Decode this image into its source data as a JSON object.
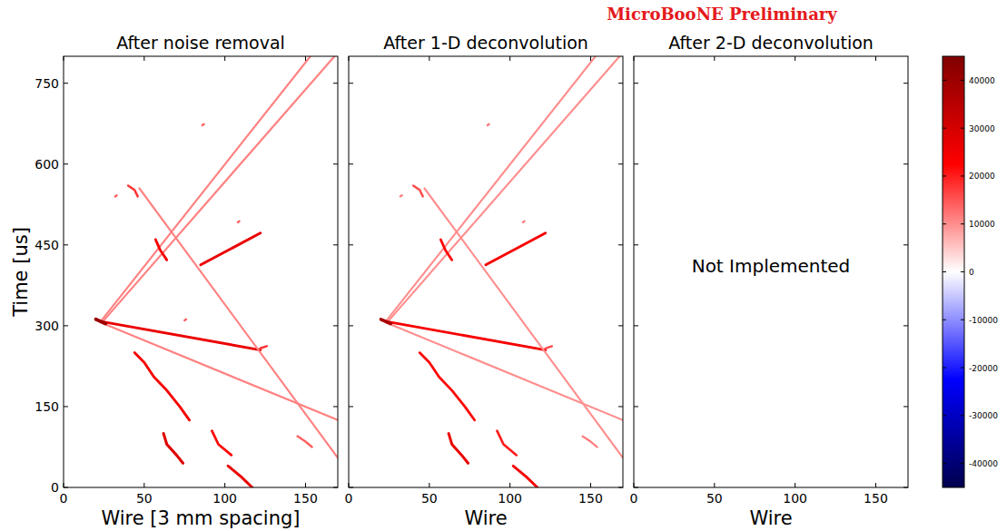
{
  "suptitle": "MicroBooNE Preliminary",
  "colorbar": {
    "range": [
      -45000,
      45000
    ],
    "ticks": [
      -40000,
      -30000,
      -20000,
      -10000,
      0,
      10000,
      20000,
      30000,
      40000
    ]
  },
  "chart_data": [
    {
      "type": "heatmap",
      "title": "After noise removal",
      "x_label": "Wire [3 mm spacing]",
      "y_label": "Time [us]",
      "xlim": [
        0,
        170
      ],
      "xticks": [
        0,
        50,
        100,
        150
      ],
      "ylim": [
        0,
        800
      ],
      "yticks": [
        0,
        150,
        300,
        450,
        600,
        750
      ],
      "tracks": [
        {
          "x": [
            23,
            153
          ],
          "values": [
            308,
            800
          ],
          "charge": 11000
        },
        {
          "x": [
            25,
            168
          ],
          "values": [
            310,
            800
          ],
          "charge": 11000
        },
        {
          "x": [
            23,
            122
          ],
          "values": [
            308,
            255
          ],
          "charge": 26000
        },
        {
          "x": [
            23,
            170
          ],
          "values": [
            306,
            125
          ],
          "charge": 11000
        },
        {
          "x": [
            47,
            170
          ],
          "values": [
            555,
            55
          ],
          "charge": 11000
        },
        {
          "x": [
            85,
            122
          ],
          "values": [
            413,
            472
          ],
          "charge": 26000
        },
        {
          "x": [
            44,
            50,
            56,
            64,
            72,
            78
          ],
          "values": [
            250,
            232,
            205,
            180,
            150,
            125
          ],
          "charge": 24000
        },
        {
          "x": [
            62,
            64,
            70,
            74
          ],
          "values": [
            100,
            80,
            60,
            45
          ],
          "charge": 28000
        },
        {
          "x": [
            92,
            96,
            104
          ],
          "values": [
            105,
            80,
            60
          ],
          "charge": 22000
        },
        {
          "x": [
            102,
            110,
            117
          ],
          "values": [
            40,
            20,
            0
          ],
          "charge": 26000
        },
        {
          "x": [
            57,
            60,
            64
          ],
          "values": [
            460,
            440,
            422
          ],
          "charge": 24000
        },
        {
          "x": [
            40,
            44,
            46
          ],
          "values": [
            560,
            552,
            540
          ],
          "charge": 18000
        },
        {
          "x": [
            145,
            150,
            154
          ],
          "values": [
            95,
            85,
            75
          ],
          "charge": 14000
        },
        {
          "x": [
            122,
            126
          ],
          "values": [
            258,
            262
          ],
          "charge": 18000
        },
        {
          "x": [
            20,
            26
          ],
          "values": [
            312,
            304
          ],
          "charge": 40000
        },
        {
          "x": [
            32,
            33
          ],
          "values": [
            540,
            542
          ],
          "charge": 14000
        },
        {
          "x": [
            86,
            87
          ],
          "values": [
            672,
            674
          ],
          "charge": 14000
        },
        {
          "x": [
            108,
            109
          ],
          "values": [
            492,
            494
          ],
          "charge": 14000
        },
        {
          "x": [
            75,
            76
          ],
          "values": [
            310,
            312
          ],
          "charge": 14000
        }
      ]
    },
    {
      "type": "heatmap",
      "title": "After 1-D deconvolution",
      "x_label": "Wire",
      "tick_labels": "x",
      "xlim": [
        0,
        170
      ],
      "xticks": [
        0,
        50,
        100,
        150
      ],
      "ylim": [
        0,
        800
      ],
      "yticks": [
        0,
        150,
        300,
        450,
        600,
        750
      ],
      "tracks": [
        {
          "x": [
            23,
            153
          ],
          "values": [
            308,
            800
          ],
          "charge": 10000
        },
        {
          "x": [
            25,
            168
          ],
          "values": [
            310,
            800
          ],
          "charge": 10000
        },
        {
          "x": [
            23,
            122
          ],
          "values": [
            308,
            255
          ],
          "charge": 24000
        },
        {
          "x": [
            23,
            170
          ],
          "values": [
            306,
            125
          ],
          "charge": 10000
        },
        {
          "x": [
            47,
            170
          ],
          "values": [
            555,
            55
          ],
          "charge": 10000
        },
        {
          "x": [
            85,
            122
          ],
          "values": [
            413,
            472
          ],
          "charge": 24000
        },
        {
          "x": [
            44,
            50,
            56,
            64,
            72,
            78
          ],
          "values": [
            250,
            232,
            205,
            180,
            150,
            125
          ],
          "charge": 22000
        },
        {
          "x": [
            62,
            64,
            70,
            74
          ],
          "values": [
            100,
            80,
            60,
            45
          ],
          "charge": 26000
        },
        {
          "x": [
            92,
            96,
            104
          ],
          "values": [
            105,
            80,
            60
          ],
          "charge": 20000
        },
        {
          "x": [
            102,
            110,
            117
          ],
          "values": [
            40,
            20,
            0
          ],
          "charge": 24000
        },
        {
          "x": [
            57,
            60,
            64
          ],
          "values": [
            460,
            440,
            422
          ],
          "charge": 22000
        },
        {
          "x": [
            40,
            44,
            46
          ],
          "values": [
            560,
            552,
            540
          ],
          "charge": 16000
        },
        {
          "x": [
            145,
            150,
            154
          ],
          "values": [
            95,
            85,
            75
          ],
          "charge": 12000
        },
        {
          "x": [
            122,
            126
          ],
          "values": [
            258,
            262
          ],
          "charge": 16000
        },
        {
          "x": [
            20,
            26
          ],
          "values": [
            312,
            304
          ],
          "charge": 38000
        },
        {
          "x": [
            32,
            33
          ],
          "values": [
            540,
            542
          ],
          "charge": 12000
        },
        {
          "x": [
            86,
            87
          ],
          "values": [
            672,
            674
          ],
          "charge": 12000
        },
        {
          "x": [
            108,
            109
          ],
          "values": [
            492,
            494
          ],
          "charge": 12000
        }
      ]
    },
    {
      "type": "heatmap",
      "title": "After 2-D deconvolution",
      "x_label": "Wire",
      "tick_labels": "x",
      "annotation": "Not Implemented",
      "xlim": [
        0,
        170
      ],
      "xticks": [
        0,
        50,
        100,
        150
      ],
      "ylim": [
        0,
        800
      ],
      "yticks": [
        0,
        150,
        300,
        450,
        600,
        750
      ]
    }
  ]
}
